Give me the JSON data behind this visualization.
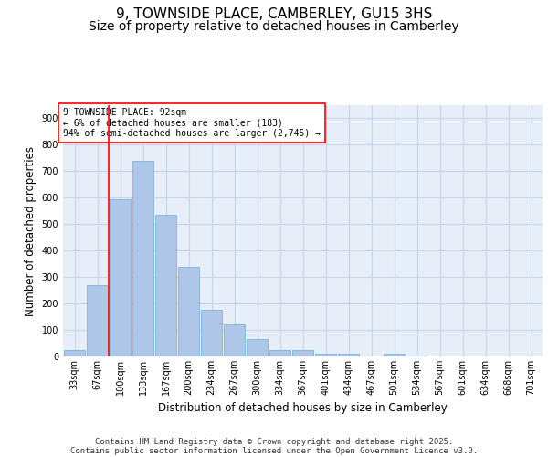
{
  "title": "9, TOWNSIDE PLACE, CAMBERLEY, GU15 3HS",
  "subtitle": "Size of property relative to detached houses in Camberley",
  "xlabel": "Distribution of detached houses by size in Camberley",
  "ylabel": "Number of detached properties",
  "categories": [
    "33sqm",
    "67sqm",
    "100sqm",
    "133sqm",
    "167sqm",
    "200sqm",
    "234sqm",
    "267sqm",
    "300sqm",
    "334sqm",
    "367sqm",
    "401sqm",
    "434sqm",
    "467sqm",
    "501sqm",
    "534sqm",
    "567sqm",
    "601sqm",
    "634sqm",
    "668sqm",
    "701sqm"
  ],
  "values": [
    25,
    270,
    595,
    740,
    535,
    340,
    175,
    120,
    65,
    25,
    25,
    10,
    10,
    0,
    10,
    5,
    0,
    0,
    0,
    0,
    0
  ],
  "bar_color": "#aec6e8",
  "bar_edge_color": "#6baed6",
  "grid_color": "#c8d4e8",
  "bg_color": "#e8eef8",
  "vline_x": 1.5,
  "vline_color": "red",
  "annotation_text": "9 TOWNSIDE PLACE: 92sqm\n← 6% of detached houses are smaller (183)\n94% of semi-detached houses are larger (2,745) →",
  "annotation_box_color": "white",
  "annotation_box_edge": "red",
  "footer_line1": "Contains HM Land Registry data © Crown copyright and database right 2025.",
  "footer_line2": "Contains public sector information licensed under the Open Government Licence v3.0.",
  "ylim": [
    0,
    950
  ],
  "yticks": [
    0,
    100,
    200,
    300,
    400,
    500,
    600,
    700,
    800,
    900
  ],
  "title_fontsize": 11,
  "subtitle_fontsize": 10,
  "label_fontsize": 8.5,
  "tick_fontsize": 7,
  "footer_fontsize": 6.5,
  "annotation_fontsize": 7
}
